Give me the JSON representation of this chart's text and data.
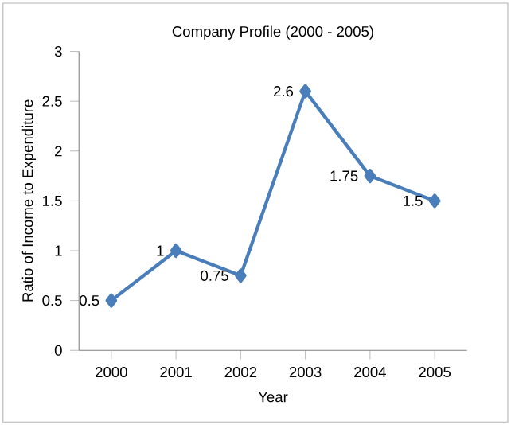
{
  "chart_data": {
    "type": "line",
    "title": "Company Profile (2000 - 2005)",
    "xlabel": "Year",
    "ylabel": "Ratio of Income to Expenditure",
    "categories": [
      "2000",
      "2001",
      "2002",
      "2003",
      "2004",
      "2005"
    ],
    "values": [
      0.5,
      1,
      0.75,
      2.6,
      1.75,
      1.5
    ],
    "color": "#4a7ebb",
    "marker": "diamond",
    "data_labels": true,
    "ylim": [
      0,
      3
    ],
    "yticks": [
      0,
      0.5,
      1,
      1.5,
      2,
      2.5,
      3
    ]
  }
}
